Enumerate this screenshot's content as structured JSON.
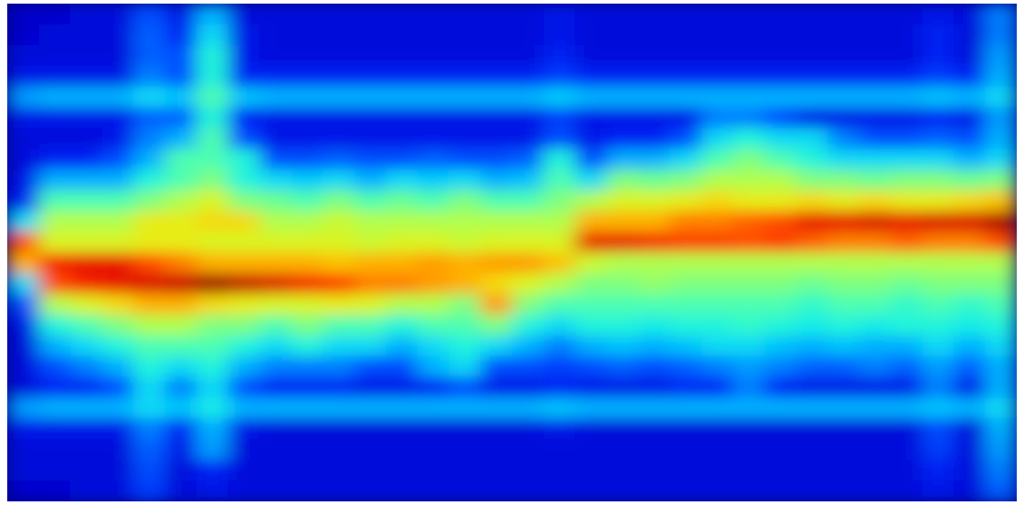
{
  "chart_data": {
    "type": "heatmap",
    "tick_labels": false,
    "zlim": [
      0,
      1
    ],
    "cells": [
      [
        0.08,
        0.08,
        0.1,
        0.1,
        0.2,
        0.12,
        0.3,
        0.1,
        0.1,
        0.1,
        0.1,
        0.1,
        0.1,
        0.1,
        0.1,
        0.1,
        0.1,
        0.12,
        0.1,
        0.1,
        0.1,
        0.1,
        0.1,
        0.1,
        0.1,
        0.1,
        0.1,
        0.1,
        0.1,
        0.12,
        0.1,
        0.25
      ],
      [
        0.08,
        0.1,
        0.1,
        0.1,
        0.22,
        0.15,
        0.35,
        0.12,
        0.1,
        0.1,
        0.1,
        0.1,
        0.1,
        0.1,
        0.1,
        0.1,
        0.1,
        0.12,
        0.1,
        0.1,
        0.1,
        0.1,
        0.1,
        0.1,
        0.1,
        0.1,
        0.1,
        0.1,
        0.1,
        0.15,
        0.1,
        0.25
      ],
      [
        0.1,
        0.1,
        0.1,
        0.1,
        0.22,
        0.2,
        0.4,
        0.12,
        0.1,
        0.1,
        0.1,
        0.1,
        0.1,
        0.1,
        0.1,
        0.1,
        0.1,
        0.15,
        0.1,
        0.1,
        0.1,
        0.1,
        0.1,
        0.1,
        0.1,
        0.1,
        0.1,
        0.1,
        0.1,
        0.15,
        0.1,
        0.28
      ],
      [
        0.12,
        0.12,
        0.12,
        0.12,
        0.25,
        0.2,
        0.4,
        0.15,
        0.15,
        0.15,
        0.15,
        0.15,
        0.15,
        0.15,
        0.15,
        0.15,
        0.15,
        0.18,
        0.15,
        0.15,
        0.15,
        0.15,
        0.15,
        0.15,
        0.15,
        0.15,
        0.15,
        0.15,
        0.15,
        0.18,
        0.15,
        0.3
      ],
      [
        0.28,
        0.3,
        0.3,
        0.3,
        0.35,
        0.32,
        0.45,
        0.32,
        0.3,
        0.3,
        0.3,
        0.3,
        0.3,
        0.3,
        0.3,
        0.3,
        0.3,
        0.33,
        0.3,
        0.3,
        0.3,
        0.3,
        0.3,
        0.3,
        0.3,
        0.3,
        0.3,
        0.3,
        0.3,
        0.32,
        0.3,
        0.35
      ],
      [
        0.12,
        0.12,
        0.12,
        0.12,
        0.22,
        0.22,
        0.4,
        0.15,
        0.12,
        0.12,
        0.12,
        0.12,
        0.12,
        0.12,
        0.12,
        0.12,
        0.12,
        0.18,
        0.12,
        0.12,
        0.12,
        0.12,
        0.25,
        0.25,
        0.2,
        0.12,
        0.12,
        0.12,
        0.12,
        0.15,
        0.12,
        0.28
      ],
      [
        0.1,
        0.1,
        0.1,
        0.12,
        0.25,
        0.3,
        0.45,
        0.2,
        0.12,
        0.12,
        0.12,
        0.12,
        0.12,
        0.12,
        0.12,
        0.12,
        0.12,
        0.2,
        0.12,
        0.15,
        0.15,
        0.2,
        0.35,
        0.4,
        0.35,
        0.35,
        0.25,
        0.2,
        0.2,
        0.22,
        0.2,
        0.3
      ],
      [
        0.1,
        0.15,
        0.15,
        0.2,
        0.3,
        0.45,
        0.45,
        0.4,
        0.2,
        0.2,
        0.22,
        0.2,
        0.2,
        0.22,
        0.2,
        0.2,
        0.22,
        0.4,
        0.2,
        0.3,
        0.3,
        0.35,
        0.45,
        0.5,
        0.45,
        0.4,
        0.35,
        0.35,
        0.35,
        0.35,
        0.3,
        0.35
      ],
      [
        0.12,
        0.3,
        0.3,
        0.3,
        0.4,
        0.45,
        0.5,
        0.4,
        0.35,
        0.33,
        0.35,
        0.3,
        0.35,
        0.33,
        0.35,
        0.3,
        0.32,
        0.45,
        0.35,
        0.5,
        0.48,
        0.5,
        0.55,
        0.55,
        0.55,
        0.5,
        0.5,
        0.48,
        0.5,
        0.5,
        0.48,
        0.5
      ],
      [
        0.15,
        0.45,
        0.45,
        0.45,
        0.5,
        0.55,
        0.6,
        0.5,
        0.48,
        0.45,
        0.5,
        0.45,
        0.48,
        0.45,
        0.5,
        0.45,
        0.45,
        0.5,
        0.55,
        0.6,
        0.6,
        0.62,
        0.65,
        0.62,
        0.62,
        0.65,
        0.62,
        0.65,
        0.62,
        0.62,
        0.65,
        0.68
      ],
      [
        0.35,
        0.55,
        0.55,
        0.55,
        0.62,
        0.62,
        0.65,
        0.65,
        0.55,
        0.55,
        0.58,
        0.55,
        0.55,
        0.55,
        0.55,
        0.55,
        0.55,
        0.55,
        0.7,
        0.7,
        0.7,
        0.75,
        0.75,
        0.78,
        0.8,
        0.88,
        0.88,
        0.9,
        0.88,
        0.9,
        0.9,
        0.95
      ],
      [
        0.8,
        0.6,
        0.6,
        0.6,
        0.62,
        0.62,
        0.6,
        0.6,
        0.6,
        0.6,
        0.6,
        0.58,
        0.6,
        0.6,
        0.58,
        0.6,
        0.6,
        0.6,
        0.88,
        0.88,
        0.85,
        0.82,
        0.82,
        0.8,
        0.82,
        0.78,
        0.75,
        0.75,
        0.78,
        0.75,
        0.75,
        0.8
      ],
      [
        0.7,
        0.85,
        0.88,
        0.88,
        0.8,
        0.75,
        0.7,
        0.7,
        0.7,
        0.7,
        0.68,
        0.7,
        0.7,
        0.72,
        0.7,
        0.72,
        0.72,
        0.68,
        0.58,
        0.55,
        0.55,
        0.55,
        0.55,
        0.55,
        0.55,
        0.55,
        0.55,
        0.55,
        0.55,
        0.55,
        0.55,
        0.55
      ],
      [
        0.35,
        0.8,
        0.85,
        0.88,
        0.9,
        0.92,
        0.97,
        0.93,
        0.9,
        0.85,
        0.82,
        0.75,
        0.75,
        0.72,
        0.7,
        0.65,
        0.6,
        0.55,
        0.5,
        0.5,
        0.52,
        0.5,
        0.5,
        0.5,
        0.5,
        0.48,
        0.5,
        0.5,
        0.48,
        0.5,
        0.5,
        0.5
      ],
      [
        0.2,
        0.55,
        0.6,
        0.65,
        0.7,
        0.7,
        0.65,
        0.62,
        0.6,
        0.6,
        0.62,
        0.6,
        0.55,
        0.55,
        0.5,
        0.72,
        0.5,
        0.45,
        0.45,
        0.45,
        0.45,
        0.45,
        0.45,
        0.45,
        0.45,
        0.42,
        0.45,
        0.45,
        0.42,
        0.45,
        0.42,
        0.45
      ],
      [
        0.12,
        0.4,
        0.45,
        0.5,
        0.55,
        0.55,
        0.5,
        0.5,
        0.45,
        0.5,
        0.45,
        0.45,
        0.4,
        0.45,
        0.45,
        0.5,
        0.4,
        0.35,
        0.4,
        0.4,
        0.38,
        0.4,
        0.4,
        0.42,
        0.4,
        0.38,
        0.4,
        0.38,
        0.4,
        0.4,
        0.38,
        0.4
      ],
      [
        0.1,
        0.3,
        0.35,
        0.4,
        0.45,
        0.45,
        0.45,
        0.4,
        0.35,
        0.4,
        0.35,
        0.35,
        0.3,
        0.35,
        0.4,
        0.35,
        0.3,
        0.25,
        0.3,
        0.32,
        0.3,
        0.32,
        0.35,
        0.35,
        0.32,
        0.3,
        0.32,
        0.3,
        0.3,
        0.35,
        0.3,
        0.35
      ],
      [
        0.1,
        0.2,
        0.25,
        0.3,
        0.4,
        0.35,
        0.4,
        0.3,
        0.25,
        0.25,
        0.25,
        0.2,
        0.2,
        0.3,
        0.35,
        0.2,
        0.2,
        0.18,
        0.2,
        0.22,
        0.2,
        0.22,
        0.25,
        0.28,
        0.25,
        0.22,
        0.22,
        0.25,
        0.22,
        0.28,
        0.22,
        0.3
      ],
      [
        0.1,
        0.15,
        0.15,
        0.2,
        0.35,
        0.25,
        0.35,
        0.2,
        0.15,
        0.15,
        0.15,
        0.12,
        0.12,
        0.15,
        0.2,
        0.12,
        0.12,
        0.15,
        0.12,
        0.12,
        0.12,
        0.15,
        0.15,
        0.25,
        0.15,
        0.12,
        0.12,
        0.12,
        0.12,
        0.25,
        0.12,
        0.3
      ],
      [
        0.28,
        0.3,
        0.3,
        0.3,
        0.35,
        0.32,
        0.38,
        0.3,
        0.3,
        0.3,
        0.3,
        0.3,
        0.3,
        0.3,
        0.3,
        0.3,
        0.3,
        0.32,
        0.3,
        0.3,
        0.3,
        0.3,
        0.3,
        0.3,
        0.3,
        0.3,
        0.3,
        0.3,
        0.3,
        0.32,
        0.3,
        0.35
      ],
      [
        0.12,
        0.12,
        0.12,
        0.12,
        0.25,
        0.15,
        0.3,
        0.12,
        0.1,
        0.1,
        0.1,
        0.1,
        0.1,
        0.1,
        0.1,
        0.1,
        0.1,
        0.12,
        0.1,
        0.1,
        0.1,
        0.1,
        0.1,
        0.1,
        0.1,
        0.1,
        0.1,
        0.1,
        0.1,
        0.2,
        0.1,
        0.3
      ],
      [
        0.1,
        0.1,
        0.1,
        0.1,
        0.22,
        0.12,
        0.28,
        0.1,
        0.1,
        0.1,
        0.1,
        0.1,
        0.1,
        0.1,
        0.1,
        0.1,
        0.1,
        0.1,
        0.1,
        0.1,
        0.1,
        0.1,
        0.1,
        0.1,
        0.1,
        0.1,
        0.1,
        0.1,
        0.1,
        0.18,
        0.1,
        0.28
      ],
      [
        0.1,
        0.1,
        0.1,
        0.1,
        0.2,
        0.1,
        0.15,
        0.1,
        0.1,
        0.1,
        0.1,
        0.1,
        0.1,
        0.1,
        0.1,
        0.1,
        0.1,
        0.1,
        0.1,
        0.1,
        0.1,
        0.1,
        0.1,
        0.1,
        0.1,
        0.1,
        0.1,
        0.1,
        0.1,
        0.15,
        0.1,
        0.25
      ],
      [
        0.08,
        0.08,
        0.1,
        0.1,
        0.18,
        0.1,
        0.12,
        0.1,
        0.1,
        0.1,
        0.1,
        0.1,
        0.1,
        0.1,
        0.1,
        0.1,
        0.1,
        0.1,
        0.1,
        0.1,
        0.1,
        0.1,
        0.1,
        0.1,
        0.1,
        0.1,
        0.1,
        0.1,
        0.1,
        0.12,
        0.1,
        0.22
      ]
    ]
  }
}
